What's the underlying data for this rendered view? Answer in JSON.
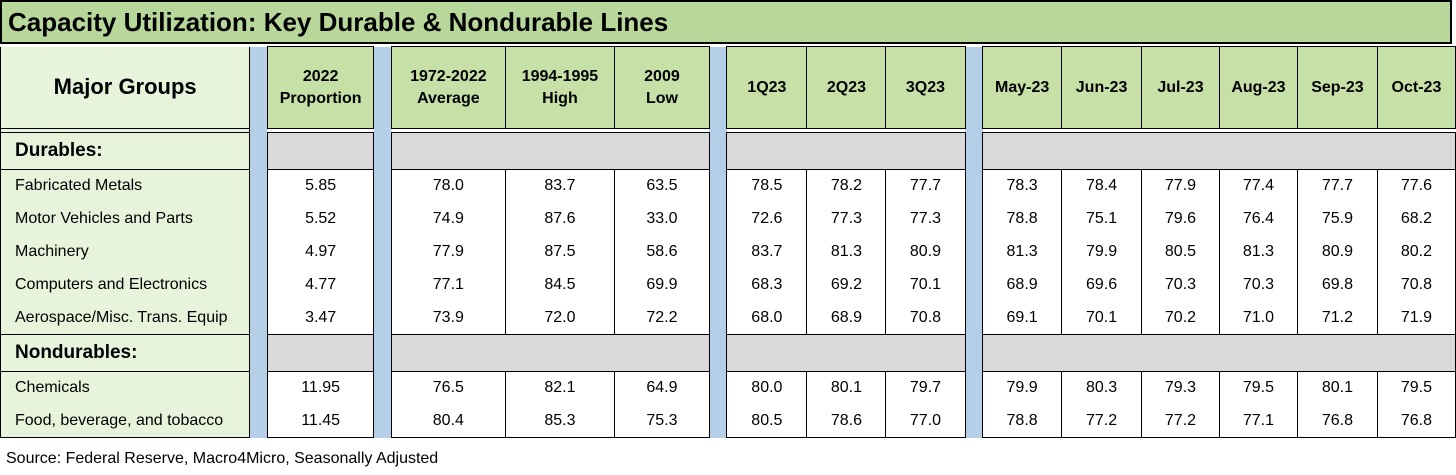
{
  "title": "Capacity Utilization: Key Durable & Nondurable Lines",
  "headers": {
    "group_label": "Major Groups",
    "columns": [
      [
        "2022",
        "Proportion"
      ],
      [
        "1972-2022",
        "Average"
      ],
      [
        "1994-1995",
        "High"
      ],
      [
        "2009",
        "Low"
      ],
      [
        "1Q23",
        ""
      ],
      [
        "2Q23",
        ""
      ],
      [
        "3Q23",
        ""
      ],
      [
        "May-23",
        ""
      ],
      [
        "Jun-23",
        ""
      ],
      [
        "Jul-23",
        ""
      ],
      [
        "Aug-23",
        ""
      ],
      [
        "Sep-23",
        ""
      ],
      [
        "Oct-23",
        ""
      ]
    ]
  },
  "sections": [
    {
      "label": "Durables:",
      "rows": [
        {
          "name": "Fabricated Metals",
          "values": [
            "5.85",
            "78.0",
            "83.7",
            "63.5",
            "78.5",
            "78.2",
            "77.7",
            "78.3",
            "78.4",
            "77.9",
            "77.4",
            "77.7",
            "77.6"
          ]
        },
        {
          "name": "Motor Vehicles and Parts",
          "values": [
            "5.52",
            "74.9",
            "87.6",
            "33.0",
            "72.6",
            "77.3",
            "77.3",
            "78.8",
            "75.1",
            "79.6",
            "76.4",
            "75.9",
            "68.2"
          ]
        },
        {
          "name": "Machinery",
          "values": [
            "4.97",
            "77.9",
            "87.5",
            "58.6",
            "83.7",
            "81.3",
            "80.9",
            "81.3",
            "79.9",
            "80.5",
            "81.3",
            "80.9",
            "80.2"
          ]
        },
        {
          "name": "Computers and Electronics",
          "values": [
            "4.77",
            "77.1",
            "84.5",
            "69.9",
            "68.3",
            "69.2",
            "70.1",
            "68.9",
            "69.6",
            "70.3",
            "70.3",
            "69.8",
            "70.8"
          ]
        },
        {
          "name": "Aerospace/Misc. Trans. Equip",
          "values": [
            "3.47",
            "73.9",
            "72.0",
            "72.2",
            "68.0",
            "68.9",
            "70.8",
            "69.1",
            "70.1",
            "70.2",
            "71.0",
            "71.2",
            "71.9"
          ]
        }
      ]
    },
    {
      "label": "Nondurables:",
      "rows": [
        {
          "name": "Chemicals",
          "values": [
            "11.95",
            "76.5",
            "82.1",
            "64.9",
            "80.0",
            "80.1",
            "79.7",
            "79.9",
            "80.3",
            "79.3",
            "79.5",
            "80.1",
            "79.5"
          ]
        },
        {
          "name": "Food, beverage, and tobacco",
          "values": [
            "11.45",
            "80.4",
            "85.3",
            "75.3",
            "80.5",
            "78.6",
            "77.0",
            "78.8",
            "77.2",
            "77.2",
            "77.1",
            "76.8",
            "76.8"
          ]
        }
      ]
    }
  ],
  "source": "Source: Federal Reserve, Macro4Micro, Seasonally Adjusted",
  "chart_data": {
    "type": "table",
    "title": "Capacity Utilization: Key Durable & Nondurable Lines",
    "columns": [
      "Major Groups",
      "2022 Proportion",
      "1972-2022 Average",
      "1994-1995 High",
      "2009 Low",
      "1Q23",
      "2Q23",
      "3Q23",
      "May-23",
      "Jun-23",
      "Jul-23",
      "Aug-23",
      "Sep-23",
      "Oct-23"
    ],
    "rows": [
      [
        "Durables:"
      ],
      [
        "Fabricated Metals",
        5.85,
        78.0,
        83.7,
        63.5,
        78.5,
        78.2,
        77.7,
        78.3,
        78.4,
        77.9,
        77.4,
        77.7,
        77.6
      ],
      [
        "Motor Vehicles and Parts",
        5.52,
        74.9,
        87.6,
        33.0,
        72.6,
        77.3,
        77.3,
        78.8,
        75.1,
        79.6,
        76.4,
        75.9,
        68.2
      ],
      [
        "Machinery",
        4.97,
        77.9,
        87.5,
        58.6,
        83.7,
        81.3,
        80.9,
        81.3,
        79.9,
        80.5,
        81.3,
        80.9,
        80.2
      ],
      [
        "Computers and Electronics",
        4.77,
        77.1,
        84.5,
        69.9,
        68.3,
        69.2,
        70.1,
        68.9,
        69.6,
        70.3,
        70.3,
        69.8,
        70.8
      ],
      [
        "Aerospace/Misc. Trans. Equip",
        3.47,
        73.9,
        72.0,
        72.2,
        68.0,
        68.9,
        70.8,
        69.1,
        70.1,
        70.2,
        71.0,
        71.2,
        71.9
      ],
      [
        "Nondurables:"
      ],
      [
        "Chemicals",
        11.95,
        76.5,
        82.1,
        64.9,
        80.0,
        80.1,
        79.7,
        79.9,
        80.3,
        79.3,
        79.5,
        80.1,
        79.5
      ],
      [
        "Food, beverage, and tobacco",
        11.45,
        80.4,
        85.3,
        75.3,
        80.5,
        78.6,
        77.0,
        78.8,
        77.2,
        77.2,
        77.1,
        76.8,
        76.8
      ]
    ]
  },
  "colors": {
    "title_bg": "#b8d79a",
    "header_bg": "#c6e0a8",
    "label_bg": "#e8f3dc",
    "separator": "#b6cfe9",
    "section_fill": "#d9d9d9"
  }
}
